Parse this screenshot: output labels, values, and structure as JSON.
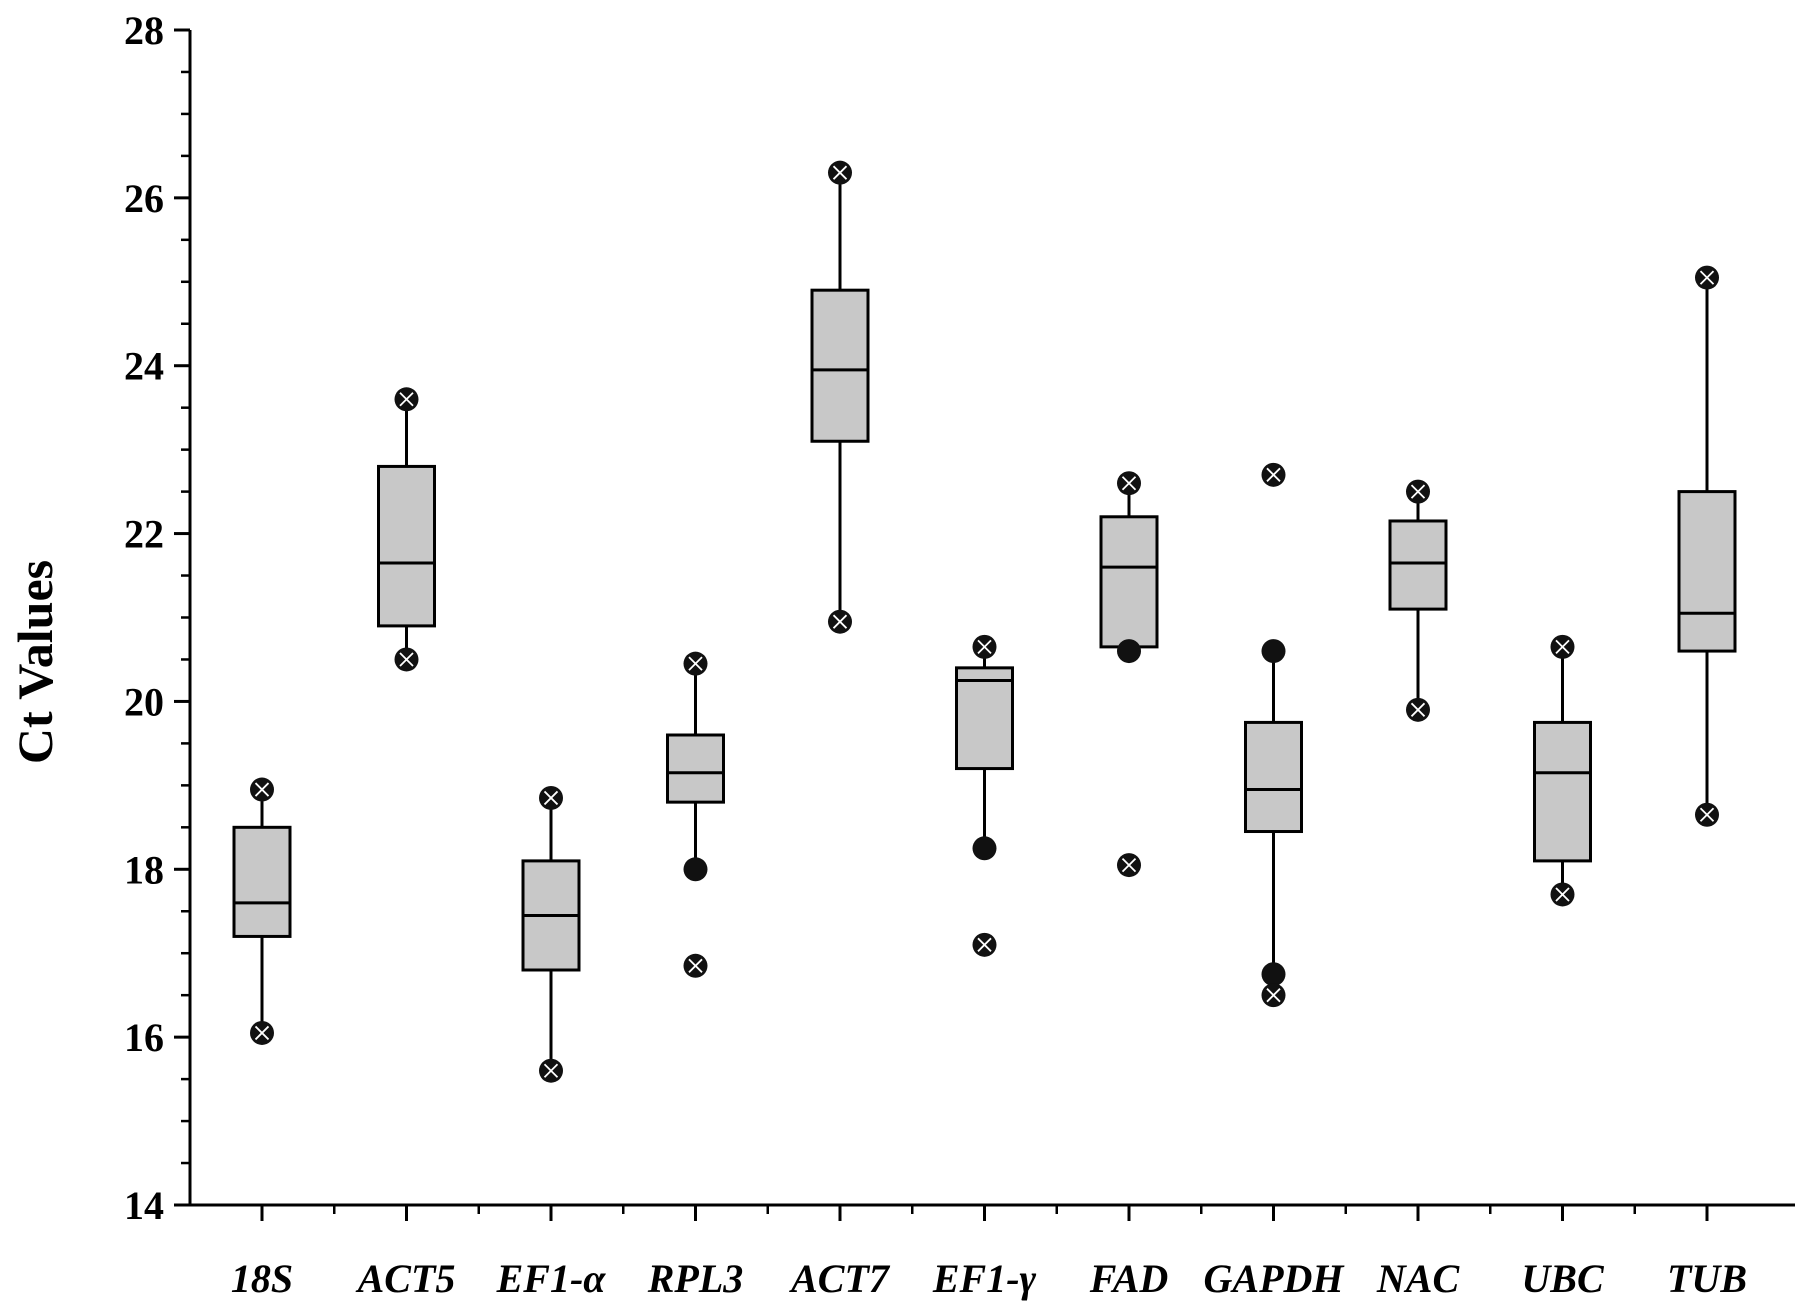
{
  "chart_data": {
    "type": "box",
    "ylabel": "Ct Values",
    "ylim": [
      14,
      28
    ],
    "yticks": [
      14,
      16,
      18,
      20,
      22,
      24,
      26,
      28
    ],
    "y_minor_step": 0.5,
    "box_fill": "#c8c8c8",
    "line_color": "#000000",
    "grid": false,
    "categories": [
      "18S",
      "ACT5",
      "EF1-α",
      "RPL3",
      "ACT7",
      "EF1-γ",
      "FAD",
      "GAPDH",
      "NAC",
      "UBC",
      "TUB"
    ],
    "boxes": [
      {
        "q1": 17.2,
        "median": 17.6,
        "q3": 18.5,
        "whisker_low": 16.05,
        "whisker_high": 18.95,
        "points": [
          {
            "y": 18.95,
            "marker": "x"
          },
          {
            "y": 16.05,
            "marker": "x"
          }
        ]
      },
      {
        "q1": 20.9,
        "median": 21.65,
        "q3": 22.8,
        "whisker_low": 20.5,
        "whisker_high": 23.6,
        "points": [
          {
            "y": 23.6,
            "marker": "x"
          },
          {
            "y": 20.5,
            "marker": "x"
          }
        ]
      },
      {
        "q1": 16.8,
        "median": 17.45,
        "q3": 18.1,
        "whisker_low": 15.6,
        "whisker_high": 18.85,
        "points": [
          {
            "y": 18.85,
            "marker": "x"
          },
          {
            "y": 15.6,
            "marker": "x"
          }
        ]
      },
      {
        "q1": 18.8,
        "median": 19.15,
        "q3": 19.6,
        "whisker_low": 18.0,
        "whisker_high": 20.45,
        "points": [
          {
            "y": 20.45,
            "marker": "x"
          },
          {
            "y": 18.0,
            "marker": "dot"
          },
          {
            "y": 16.85,
            "marker": "x"
          }
        ]
      },
      {
        "q1": 23.1,
        "median": 23.95,
        "q3": 24.9,
        "whisker_low": 20.95,
        "whisker_high": 26.3,
        "points": [
          {
            "y": 26.3,
            "marker": "x"
          },
          {
            "y": 20.95,
            "marker": "x"
          }
        ]
      },
      {
        "q1": 19.2,
        "median": 20.25,
        "q3": 20.4,
        "whisker_low": 18.25,
        "whisker_high": 20.65,
        "points": [
          {
            "y": 20.65,
            "marker": "x"
          },
          {
            "y": 18.25,
            "marker": "dot"
          },
          {
            "y": 17.1,
            "marker": "x"
          }
        ]
      },
      {
        "q1": 20.65,
        "median": 21.6,
        "q3": 22.2,
        "whisker_low": 20.6,
        "whisker_high": 22.6,
        "points": [
          {
            "y": 22.6,
            "marker": "x"
          },
          {
            "y": 20.6,
            "marker": "dot"
          },
          {
            "y": 18.05,
            "marker": "x"
          }
        ]
      },
      {
        "q1": 18.45,
        "median": 18.95,
        "q3": 19.75,
        "whisker_low": 16.75,
        "whisker_high": 20.6,
        "points": [
          {
            "y": 22.7,
            "marker": "x"
          },
          {
            "y": 20.6,
            "marker": "dot"
          },
          {
            "y": 16.75,
            "marker": "dot"
          },
          {
            "y": 16.5,
            "marker": "x"
          }
        ]
      },
      {
        "q1": 21.1,
        "median": 21.65,
        "q3": 22.15,
        "whisker_low": 19.9,
        "whisker_high": 22.5,
        "points": [
          {
            "y": 22.5,
            "marker": "x"
          },
          {
            "y": 19.9,
            "marker": "x"
          }
        ]
      },
      {
        "q1": 18.1,
        "median": 19.15,
        "q3": 19.75,
        "whisker_low": 17.7,
        "whisker_high": 20.65,
        "points": [
          {
            "y": 20.65,
            "marker": "x"
          },
          {
            "y": 17.7,
            "marker": "x"
          }
        ]
      },
      {
        "q1": 20.6,
        "median": 21.05,
        "q3": 22.5,
        "whisker_low": 18.65,
        "whisker_high": 25.05,
        "points": [
          {
            "y": 25.05,
            "marker": "x"
          },
          {
            "y": 18.65,
            "marker": "x"
          }
        ]
      }
    ]
  }
}
